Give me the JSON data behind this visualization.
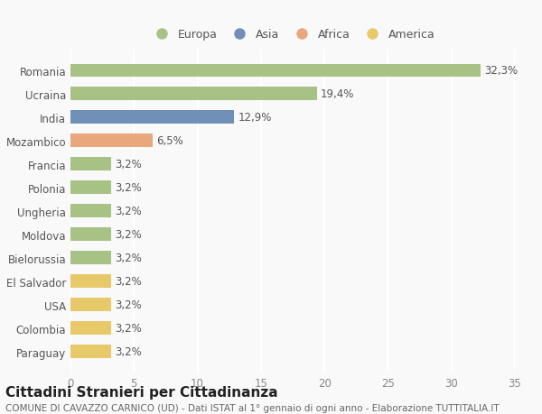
{
  "categories": [
    "Paraguay",
    "Colombia",
    "USA",
    "El Salvador",
    "Bielorussia",
    "Moldova",
    "Ungheria",
    "Polonia",
    "Francia",
    "Mozambico",
    "India",
    "Ucraina",
    "Romania"
  ],
  "values": [
    3.2,
    3.2,
    3.2,
    3.2,
    3.2,
    3.2,
    3.2,
    3.2,
    3.2,
    6.5,
    12.9,
    19.4,
    32.3
  ],
  "labels": [
    "3,2%",
    "3,2%",
    "3,2%",
    "3,2%",
    "3,2%",
    "3,2%",
    "3,2%",
    "3,2%",
    "3,2%",
    "6,5%",
    "12,9%",
    "19,4%",
    "32,3%"
  ],
  "bar_colors": [
    "#e8c96a",
    "#e8c96a",
    "#e8c96a",
    "#e8c96a",
    "#a8c285",
    "#a8c285",
    "#a8c285",
    "#a8c285",
    "#a8c285",
    "#e8a87c",
    "#7090b8",
    "#a8c285",
    "#a8c285"
  ],
  "legend_entries": [
    {
      "label": "Europa",
      "color": "#a8c285"
    },
    {
      "label": "Asia",
      "color": "#7090b8"
    },
    {
      "label": "Africa",
      "color": "#e8a87c"
    },
    {
      "label": "America",
      "color": "#e8c96a"
    }
  ],
  "xlim": [
    0,
    35
  ],
  "xticks": [
    0,
    5,
    10,
    15,
    20,
    25,
    30,
    35
  ],
  "title": "Cittadini Stranieri per Cittadinanza",
  "subtitle": "COMUNE DI CAVAZZO CARNICO (UD) - Dati ISTAT al 1° gennaio di ogni anno - Elaborazione TUTTITALIA.IT",
  "background_color": "#f9f9f9",
  "plot_bg_color": "#f9f9f9",
  "grid_color": "#ffffff",
  "title_fontsize": 11,
  "subtitle_fontsize": 7.5,
  "label_fontsize": 8.5,
  "tick_fontsize": 8.5,
  "legend_fontsize": 9
}
